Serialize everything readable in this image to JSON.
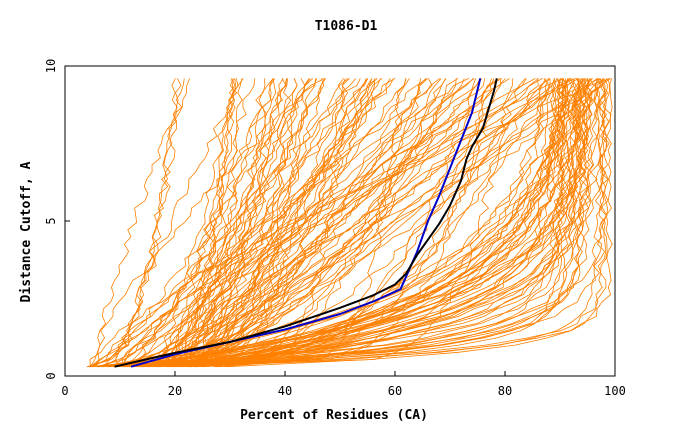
{
  "chart_data": {
    "type": "line",
    "title": "T1086-D1",
    "xlabel": "Percent of Residues (CA)",
    "ylabel": "Distance Cutoff, A",
    "xlim": [
      0,
      100
    ],
    "ylim": [
      0,
      10
    ],
    "xticks": [
      "0",
      "20",
      "40",
      "60",
      "80",
      "100"
    ],
    "yticks": [
      "0",
      "5",
      "10"
    ],
    "grid": false,
    "legend": "none",
    "colors": {
      "background_series": "#ff8000",
      "highlight_blue": "#0000cc",
      "highlight_black": "#000000",
      "axis": "#000000"
    },
    "highlight_series": [
      {
        "color": "#0000cc",
        "x": [
          12,
          20,
          30,
          40,
          50,
          56,
          61,
          62,
          64,
          66,
          68,
          70,
          72,
          74,
          75.5
        ],
        "y": [
          0.3,
          0.7,
          1.1,
          1.5,
          2.0,
          2.4,
          2.8,
          3.2,
          4.0,
          5.0,
          5.8,
          6.7,
          7.6,
          8.5,
          9.6
        ]
      },
      {
        "color": "#000000",
        "x": [
          9,
          20,
          30,
          40,
          50,
          56,
          60,
          62,
          64,
          66,
          68,
          70,
          72,
          73,
          74,
          76,
          77,
          78,
          78.5
        ],
        "y": [
          0.3,
          0.75,
          1.1,
          1.6,
          2.2,
          2.6,
          2.95,
          3.3,
          3.9,
          4.4,
          4.9,
          5.5,
          6.3,
          7.0,
          7.4,
          8.0,
          8.6,
          9.2,
          9.6
        ]
      }
    ],
    "background_series_count": 160,
    "background_x_range": [
      4,
      99.5
    ],
    "background_y_range": [
      0.3,
      9.6
    ]
  }
}
